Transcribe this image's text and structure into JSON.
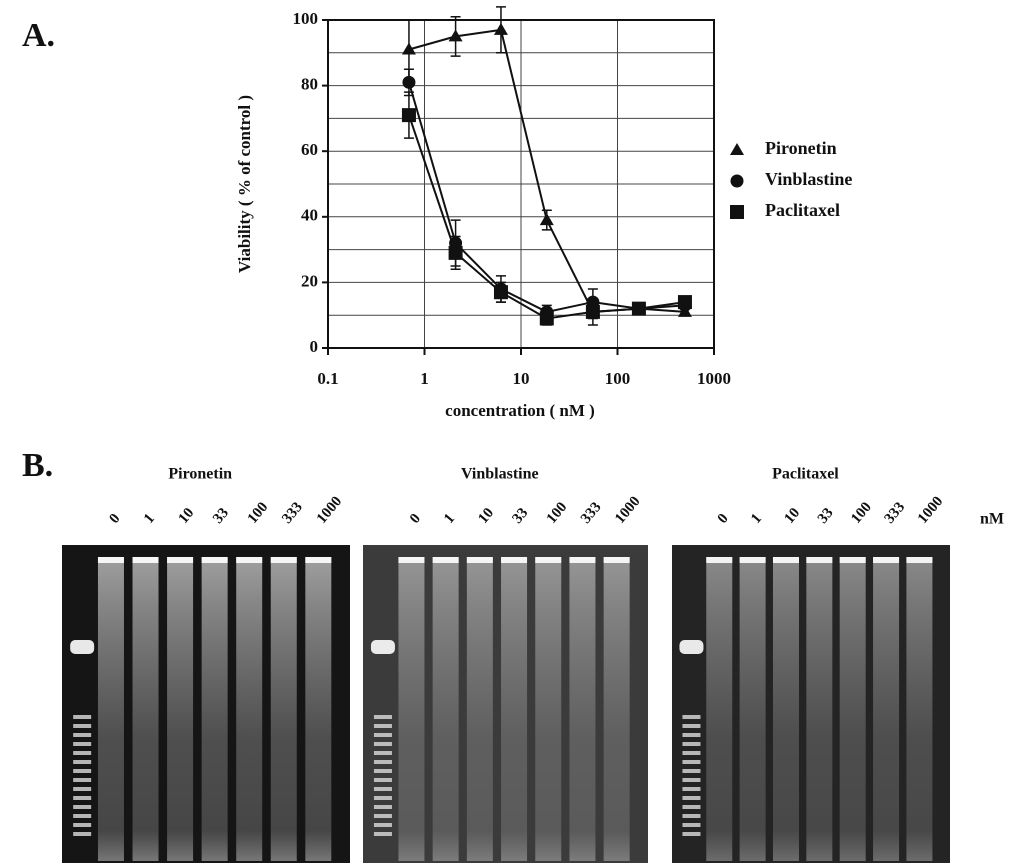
{
  "panel_a": "A.",
  "panel_b": "B.",
  "chart_data": {
    "type": "line",
    "x_label": "concentration ( nM )",
    "y_label": "Viability ( % of control )",
    "x": [
      0.69,
      2.1,
      6.2,
      18.5,
      55.6,
      166.7,
      500
    ],
    "xlim": [
      0.1,
      1000
    ],
    "xticks": [
      0.1,
      1,
      10,
      100,
      1000
    ],
    "xscale": "log",
    "ylim": [
      0,
      100
    ],
    "yticks": [
      0,
      20,
      40,
      60,
      80,
      100
    ],
    "yminor": [
      10,
      30,
      50,
      70,
      90
    ],
    "grid": true,
    "series": [
      {
        "name": "Pironetin",
        "color": "#111111",
        "marker": "triangle",
        "values": [
          91,
          95,
          97,
          39,
          11,
          12,
          11
        ],
        "errors": [
          9,
          6,
          7,
          3,
          2,
          1,
          1
        ]
      },
      {
        "name": "Vinblastine",
        "color": "#111111",
        "marker": "circle",
        "values": [
          81,
          32,
          18,
          11,
          14,
          12,
          13
        ],
        "errors": [
          4,
          7,
          4,
          2,
          4,
          1,
          1
        ]
      },
      {
        "name": "Paclitaxel",
        "color": "#111111",
        "marker": "square",
        "values": [
          71,
          29,
          17,
          9,
          11,
          12,
          14
        ],
        "errors": [
          7,
          5,
          3,
          2,
          4,
          1,
          1
        ]
      }
    ]
  },
  "gels": {
    "titles": [
      "Pironetin",
      "Vinblastine",
      "Paclitaxel"
    ],
    "lane_labels": [
      "0",
      "1",
      "10",
      "33",
      "100",
      "333",
      "1000"
    ],
    "unit": "nM"
  }
}
